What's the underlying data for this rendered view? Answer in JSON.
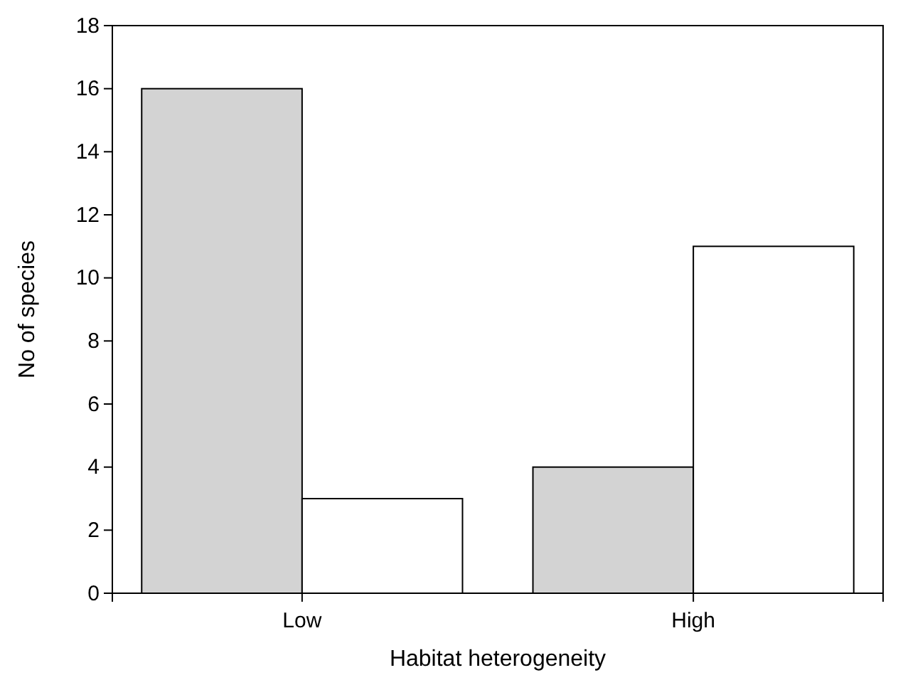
{
  "chart_data": {
    "type": "bar",
    "xlabel": "Habitat heterogeneity",
    "ylabel": "No of species",
    "categories": [
      "Low",
      "High"
    ],
    "series": [
      {
        "color": "#d3d3d3",
        "values": [
          16,
          4
        ]
      },
      {
        "color": "#ffffff",
        "values": [
          3,
          11
        ]
      }
    ],
    "ylim": [
      0,
      18
    ],
    "yticks": [
      0,
      2,
      4,
      6,
      8,
      10,
      12,
      14,
      16,
      18
    ],
    "grid": false
  }
}
